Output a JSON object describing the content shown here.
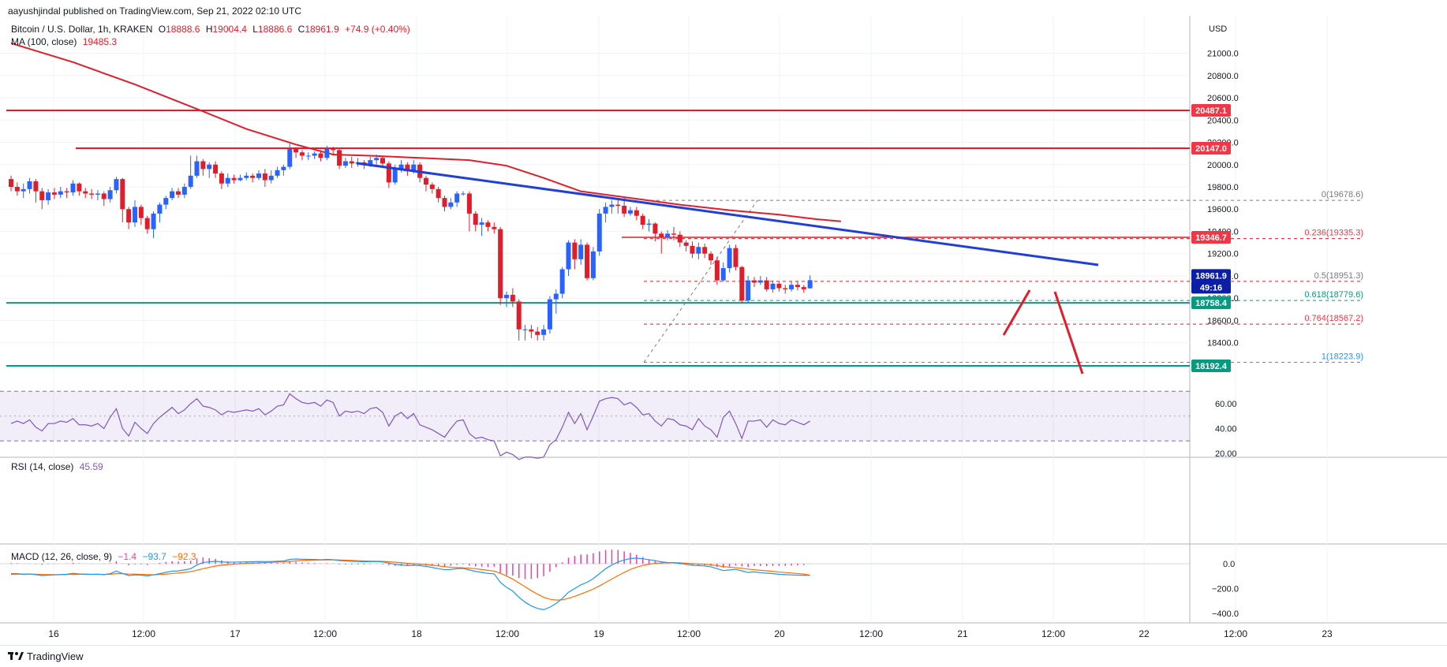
{
  "header": {
    "published": "aayushjindal published on TradingView.com, Sep 21, 2022 02:10 UTC"
  },
  "legend": {
    "symbol": "Bitcoin / U.S. Dollar, 1h, KRAKEN",
    "o_label": "O",
    "o_value": "18888.6",
    "h_label": "H",
    "h_value": "19004.4",
    "l_label": "L",
    "l_value": "18886.6",
    "c_label": "C",
    "c_value": "18961.9",
    "change": "+74.9 (+0.40%)",
    "ma_label": "MA (100, close)",
    "ma_value": "19485.3"
  },
  "rsi": {
    "label": "RSI (14, close)",
    "value": "45.59"
  },
  "macd": {
    "label": "MACD (12, 26, close, 9)",
    "hist": "−1.4",
    "macd": "−93.7",
    "signal": "−92.3"
  },
  "price_axis": {
    "currency": "USD",
    "ticks": [
      "21000.0",
      "20800.0",
      "20600.0",
      "20400.0",
      "20200.0",
      "20000.0",
      "19800.0",
      "19600.0",
      "19400.0",
      "19200.0",
      "19000.0",
      "18800.0",
      "18600.0",
      "18400.0"
    ]
  },
  "rsi_axis": {
    "ticks": [
      "60.00",
      "40.00",
      "20.00"
    ]
  },
  "macd_axis": {
    "ticks": [
      "0.0",
      "−200.0",
      "−400.0"
    ]
  },
  "time_axis": {
    "labels": [
      "16",
      "12:00",
      "17",
      "12:00",
      "18",
      "12:00",
      "19",
      "12:00",
      "20",
      "12:00",
      "21",
      "12:00",
      "22",
      "12:00",
      "23"
    ]
  },
  "price_badges": [
    {
      "label": "20487.1",
      "color": "#f23645"
    },
    {
      "label": "20147.0",
      "color": "#f23645"
    },
    {
      "label": "19346.7",
      "color": "#f23645"
    },
    {
      "label": "18961.9",
      "color": "#0a1ea8"
    },
    {
      "label": "49:16",
      "color": "#0a1ea8"
    },
    {
      "label": "18758.4",
      "color": "#089981"
    },
    {
      "label": "18192.4",
      "color": "#089981"
    }
  ],
  "fib_labels": [
    {
      "text": "0(19678.6)",
      "color": "#787b86"
    },
    {
      "text": "0.236(19335.3)",
      "color": "#f23645"
    },
    {
      "text": "0.5(18951.3)",
      "color": "#787b86"
    },
    {
      "text": "0.618(18779.6)",
      "color": "#089981"
    },
    {
      "text": "0.764(18567.2)",
      "color": "#f23645"
    },
    {
      "text": "1(18223.9)",
      "color": "#2196f3"
    }
  ],
  "footer": {
    "brand": "TradingView"
  },
  "colors": {
    "up": "#2962ff",
    "down": "#e01e2b",
    "ma": "#e01e2b",
    "support": "#089981",
    "trendline": "#1f3fd6",
    "rsi_line": "#7e57c2",
    "macd_line": "#2196f3",
    "signal_line": "#ff6d00",
    "hist": "#f23ab0"
  },
  "chart_data": {
    "type": "candlestick",
    "title": "Bitcoin / U.S. Dollar, 1h, KRAKEN",
    "ylim": [
      18100,
      21300
    ],
    "ma_100": [
      [
        0,
        21090
      ],
      [
        10,
        20920
      ],
      [
        20,
        20720
      ],
      [
        30,
        20500
      ],
      [
        38,
        20320
      ],
      [
        46,
        20180
      ],
      [
        52,
        20090
      ],
      [
        58,
        20080
      ],
      [
        66,
        20060
      ],
      [
        74,
        20040
      ],
      [
        80,
        19990
      ],
      [
        86,
        19880
      ],
      [
        92,
        19760
      ],
      [
        100,
        19700
      ],
      [
        108,
        19640
      ],
      [
        116,
        19590
      ],
      [
        124,
        19550
      ],
      [
        130,
        19510
      ],
      [
        134,
        19490
      ]
    ],
    "candles": [
      [
        19870,
        19800,
        19900,
        19760
      ],
      [
        19800,
        19760,
        19840,
        19720
      ],
      [
        19760,
        19780,
        19830,
        19700
      ],
      [
        19780,
        19850,
        19880,
        19740
      ],
      [
        19850,
        19760,
        19870,
        19660
      ],
      [
        19760,
        19680,
        19790,
        19600
      ],
      [
        19680,
        19750,
        19780,
        19640
      ],
      [
        19750,
        19730,
        19790,
        19690
      ],
      [
        19730,
        19760,
        19800,
        19700
      ],
      [
        19760,
        19750,
        19790,
        19700
      ],
      [
        19750,
        19830,
        19860,
        19720
      ],
      [
        19830,
        19760,
        19840,
        19720
      ],
      [
        19760,
        19740,
        19790,
        19700
      ],
      [
        19740,
        19730,
        19780,
        19690
      ],
      [
        19730,
        19740,
        19770,
        19680
      ],
      [
        19740,
        19690,
        19760,
        19630
      ],
      [
        19690,
        19770,
        19800,
        19660
      ],
      [
        19770,
        19870,
        19890,
        19740
      ],
      [
        19870,
        19600,
        19880,
        19480
      ],
      [
        19600,
        19480,
        19620,
        19420
      ],
      [
        19480,
        19620,
        19680,
        19440
      ],
      [
        19620,
        19520,
        19640,
        19460
      ],
      [
        19520,
        19420,
        19540,
        19380
      ],
      [
        19420,
        19560,
        19580,
        19340
      ],
      [
        19560,
        19640,
        19660,
        19480
      ],
      [
        19640,
        19700,
        19720,
        19600
      ],
      [
        19700,
        19760,
        19790,
        19680
      ],
      [
        19760,
        19730,
        19790,
        19700
      ],
      [
        19730,
        19800,
        19830,
        19700
      ],
      [
        19800,
        19900,
        20080,
        19780
      ],
      [
        19900,
        20030,
        20080,
        19880
      ],
      [
        20030,
        19960,
        20050,
        19900
      ],
      [
        19960,
        20000,
        20020,
        19880
      ],
      [
        20000,
        19920,
        20030,
        19880
      ],
      [
        19920,
        19830,
        19940,
        19780
      ],
      [
        19830,
        19880,
        19920,
        19800
      ],
      [
        19880,
        19860,
        19910,
        19830
      ],
      [
        19860,
        19880,
        19910,
        19850
      ],
      [
        19880,
        19900,
        19930,
        19860
      ],
      [
        19900,
        19880,
        19920,
        19840
      ],
      [
        19880,
        19920,
        19950,
        19860
      ],
      [
        19920,
        19860,
        19960,
        19800
      ],
      [
        19860,
        19900,
        19950,
        19830
      ],
      [
        19900,
        19950,
        19980,
        19880
      ],
      [
        19950,
        19980,
        20000,
        19900
      ],
      [
        19980,
        20140,
        20200,
        19960
      ],
      [
        20140,
        20110,
        20150,
        20060
      ],
      [
        20110,
        20080,
        20130,
        20040
      ],
      [
        20080,
        20080,
        20110,
        20040
      ],
      [
        20080,
        20100,
        20120,
        20050
      ],
      [
        20100,
        20060,
        20130,
        20030
      ],
      [
        20060,
        20140,
        20170,
        20040
      ],
      [
        20140,
        20130,
        20160,
        20080
      ],
      [
        20130,
        19990,
        20150,
        19960
      ],
      [
        19990,
        20030,
        20060,
        19970
      ],
      [
        20030,
        20010,
        20070,
        19970
      ],
      [
        20010,
        20020,
        20060,
        19980
      ],
      [
        20020,
        20000,
        20040,
        19960
      ],
      [
        20000,
        20040,
        20070,
        19980
      ],
      [
        20040,
        20060,
        20090,
        20000
      ],
      [
        20060,
        20010,
        20080,
        19990
      ],
      [
        20010,
        19840,
        20030,
        19790
      ],
      [
        19840,
        19960,
        20000,
        19820
      ],
      [
        19960,
        20000,
        20040,
        19930
      ],
      [
        20000,
        19940,
        20020,
        19900
      ],
      [
        19940,
        20000,
        20040,
        19920
      ],
      [
        20000,
        19880,
        20020,
        19840
      ],
      [
        19880,
        19820,
        19900,
        19760
      ],
      [
        19820,
        19780,
        19840,
        19740
      ],
      [
        19780,
        19700,
        19800,
        19660
      ],
      [
        19700,
        19620,
        19720,
        19580
      ],
      [
        19620,
        19660,
        19700,
        19600
      ],
      [
        19660,
        19740,
        19760,
        19620
      ],
      [
        19740,
        19740,
        19760,
        19720
      ],
      [
        19740,
        19560,
        19760,
        19400
      ],
      [
        19560,
        19460,
        19580,
        19400
      ],
      [
        19460,
        19480,
        19520,
        19360
      ],
      [
        19480,
        19440,
        19500,
        19400
      ],
      [
        19440,
        19420,
        19480,
        19380
      ],
      [
        19420,
        18800,
        19440,
        18740
      ],
      [
        18800,
        18830,
        18860,
        18720
      ],
      [
        18830,
        18770,
        18890,
        18720
      ],
      [
        18770,
        18520,
        18790,
        18420
      ],
      [
        18520,
        18520,
        18560,
        18420
      ],
      [
        18520,
        18500,
        18560,
        18440
      ],
      [
        18500,
        18470,
        18540,
        18420
      ],
      [
        18470,
        18520,
        18560,
        18420
      ],
      [
        18520,
        18790,
        18820,
        18480
      ],
      [
        18790,
        18840,
        18880,
        18660
      ],
      [
        18840,
        19060,
        19080,
        18800
      ],
      [
        19060,
        19300,
        19320,
        19000
      ],
      [
        19300,
        19150,
        19330,
        19060
      ],
      [
        19150,
        19280,
        19330,
        19100
      ],
      [
        19280,
        18980,
        19300,
        18960
      ],
      [
        18980,
        19220,
        19260,
        18960
      ],
      [
        19220,
        19560,
        19600,
        19180
      ],
      [
        19560,
        19620,
        19660,
        19480
      ],
      [
        19620,
        19640,
        19680,
        19560
      ],
      [
        19640,
        19630,
        19680,
        19560
      ],
      [
        19630,
        19560,
        19700,
        19530
      ],
      [
        19560,
        19590,
        19620,
        19540
      ],
      [
        19590,
        19540,
        19620,
        19500
      ],
      [
        19540,
        19460,
        19560,
        19420
      ],
      [
        19460,
        19470,
        19510,
        19400
      ],
      [
        19470,
        19380,
        19480,
        19310
      ],
      [
        19380,
        19350,
        19400,
        19200
      ],
      [
        19350,
        19380,
        19410,
        19320
      ],
      [
        19380,
        19370,
        19440,
        19320
      ],
      [
        19370,
        19300,
        19400,
        19260
      ],
      [
        19300,
        19270,
        19320,
        19220
      ],
      [
        19270,
        19200,
        19310,
        19160
      ],
      [
        19200,
        19260,
        19300,
        19150
      ],
      [
        19260,
        19200,
        19290,
        19160
      ],
      [
        19200,
        19140,
        19220,
        19100
      ],
      [
        19140,
        18960,
        19170,
        18920
      ],
      [
        18960,
        19070,
        19120,
        18950
      ],
      [
        19070,
        19250,
        19280,
        19030
      ],
      [
        19250,
        19080,
        19280,
        19050
      ],
      [
        19080,
        18780,
        19090,
        18760
      ],
      [
        18780,
        18960,
        19000,
        18760
      ],
      [
        18960,
        18940,
        18990,
        18900
      ],
      [
        18940,
        18960,
        19000,
        18920
      ],
      [
        18960,
        18880,
        18990,
        18860
      ],
      [
        18880,
        18930,
        18960,
        18850
      ],
      [
        18930,
        18890,
        18950,
        18860
      ],
      [
        18890,
        18880,
        18920,
        18840
      ],
      [
        18880,
        18920,
        18950,
        18860
      ],
      [
        18920,
        18900,
        18950,
        18870
      ],
      [
        18900,
        18880,
        18920,
        18850
      ],
      [
        18888.6,
        18961.9,
        19004.4,
        18886.6
      ]
    ],
    "rsi": [
      44,
      46,
      44,
      47,
      41,
      38,
      44,
      44,
      46,
      45,
      48,
      43,
      43,
      42,
      44,
      40,
      49,
      56,
      40,
      34,
      45,
      40,
      36,
      44,
      49,
      53,
      57,
      52,
      55,
      60,
      64,
      58,
      57,
      55,
      51,
      54,
      53,
      54,
      55,
      54,
      56,
      51,
      54,
      58,
      59,
      68,
      64,
      61,
      60,
      61,
      58,
      63,
      61,
      50,
      54,
      53,
      54,
      52,
      56,
      57,
      53,
      42,
      50,
      53,
      48,
      52,
      43,
      41,
      39,
      36,
      33,
      40,
      46,
      47,
      36,
      32,
      33,
      31,
      30,
      18,
      21,
      19,
      15,
      17,
      17,
      16,
      17,
      27,
      31,
      41,
      53,
      44,
      52,
      39,
      50,
      62,
      64,
      65,
      64,
      59,
      61,
      57,
      51,
      52,
      46,
      42,
      48,
      47,
      43,
      42,
      39,
      48,
      42,
      39,
      33,
      49,
      54,
      44,
      32,
      46,
      46,
      47,
      41,
      47,
      44,
      43,
      47,
      45,
      43,
      46
    ],
    "macd_signal_pairs_note": "MACD panel lines follow price momentum; see macd/signal arrays",
    "macd": [
      -80,
      -80,
      -85,
      -82,
      -88,
      -95,
      -92,
      -90,
      -88,
      -85,
      -78,
      -82,
      -84,
      -86,
      -85,
      -88,
      -80,
      -60,
      -78,
      -95,
      -90,
      -92,
      -98,
      -90,
      -80,
      -70,
      -60,
      -58,
      -50,
      -40,
      -10,
      10,
      15,
      20,
      15,
      12,
      13,
      14,
      15,
      16,
      18,
      17,
      18,
      20,
      22,
      35,
      38,
      36,
      35,
      34,
      32,
      35,
      33,
      25,
      22,
      20,
      18,
      16,
      17,
      18,
      14,
      5,
      -5,
      -10,
      -15,
      -12,
      -15,
      -22,
      -30,
      -40,
      -48,
      -46,
      -40,
      -38,
      -50,
      -62,
      -70,
      -78,
      -82,
      -150,
      -190,
      -220,
      -270,
      -310,
      -340,
      -360,
      -370,
      -350,
      -320,
      -280,
      -230,
      -200,
      -170,
      -150,
      -120,
      -80,
      -40,
      -10,
      15,
      30,
      42,
      45,
      40,
      32,
      25,
      15,
      10,
      8,
      2,
      -5,
      -12,
      -15,
      -18,
      -25,
      -40,
      -55,
      -50,
      -45,
      -58,
      -70,
      -66,
      -72,
      -76,
      -80,
      -85,
      -88,
      -90,
      -92,
      -93,
      -93.7
    ],
    "signal": [
      -85,
      -84,
      -84,
      -84,
      -85,
      -87,
      -88,
      -88,
      -88,
      -87,
      -85,
      -85,
      -85,
      -85,
      -85,
      -86,
      -85,
      -80,
      -80,
      -83,
      -84,
      -86,
      -88,
      -89,
      -87,
      -84,
      -79,
      -75,
      -70,
      -64,
      -53,
      -40,
      -29,
      -19,
      -12,
      -7,
      -3,
      0,
      3,
      5,
      7,
      9,
      11,
      13,
      15,
      19,
      23,
      26,
      28,
      29,
      30,
      31,
      31,
      30,
      28,
      26,
      24,
      22,
      21,
      20,
      19,
      16,
      12,
      8,
      3,
      0,
      -3,
      -7,
      -12,
      -18,
      -24,
      -29,
      -31,
      -33,
      -36,
      -41,
      -47,
      -53,
      -59,
      -77,
      -99,
      -124,
      -155,
      -186,
      -217,
      -245,
      -270,
      -286,
      -293,
      -291,
      -279,
      -263,
      -244,
      -225,
      -204,
      -179,
      -151,
      -123,
      -96,
      -70,
      -46,
      -28,
      -14,
      -4,
      3,
      6,
      8,
      8,
      7,
      4,
      1,
      -2,
      -5,
      -9,
      -15,
      -23,
      -28,
      -32,
      -37,
      -44,
      -48,
      -53,
      -57,
      -62,
      -67,
      -71,
      -75,
      -79,
      -83,
      -92.3
    ]
  }
}
